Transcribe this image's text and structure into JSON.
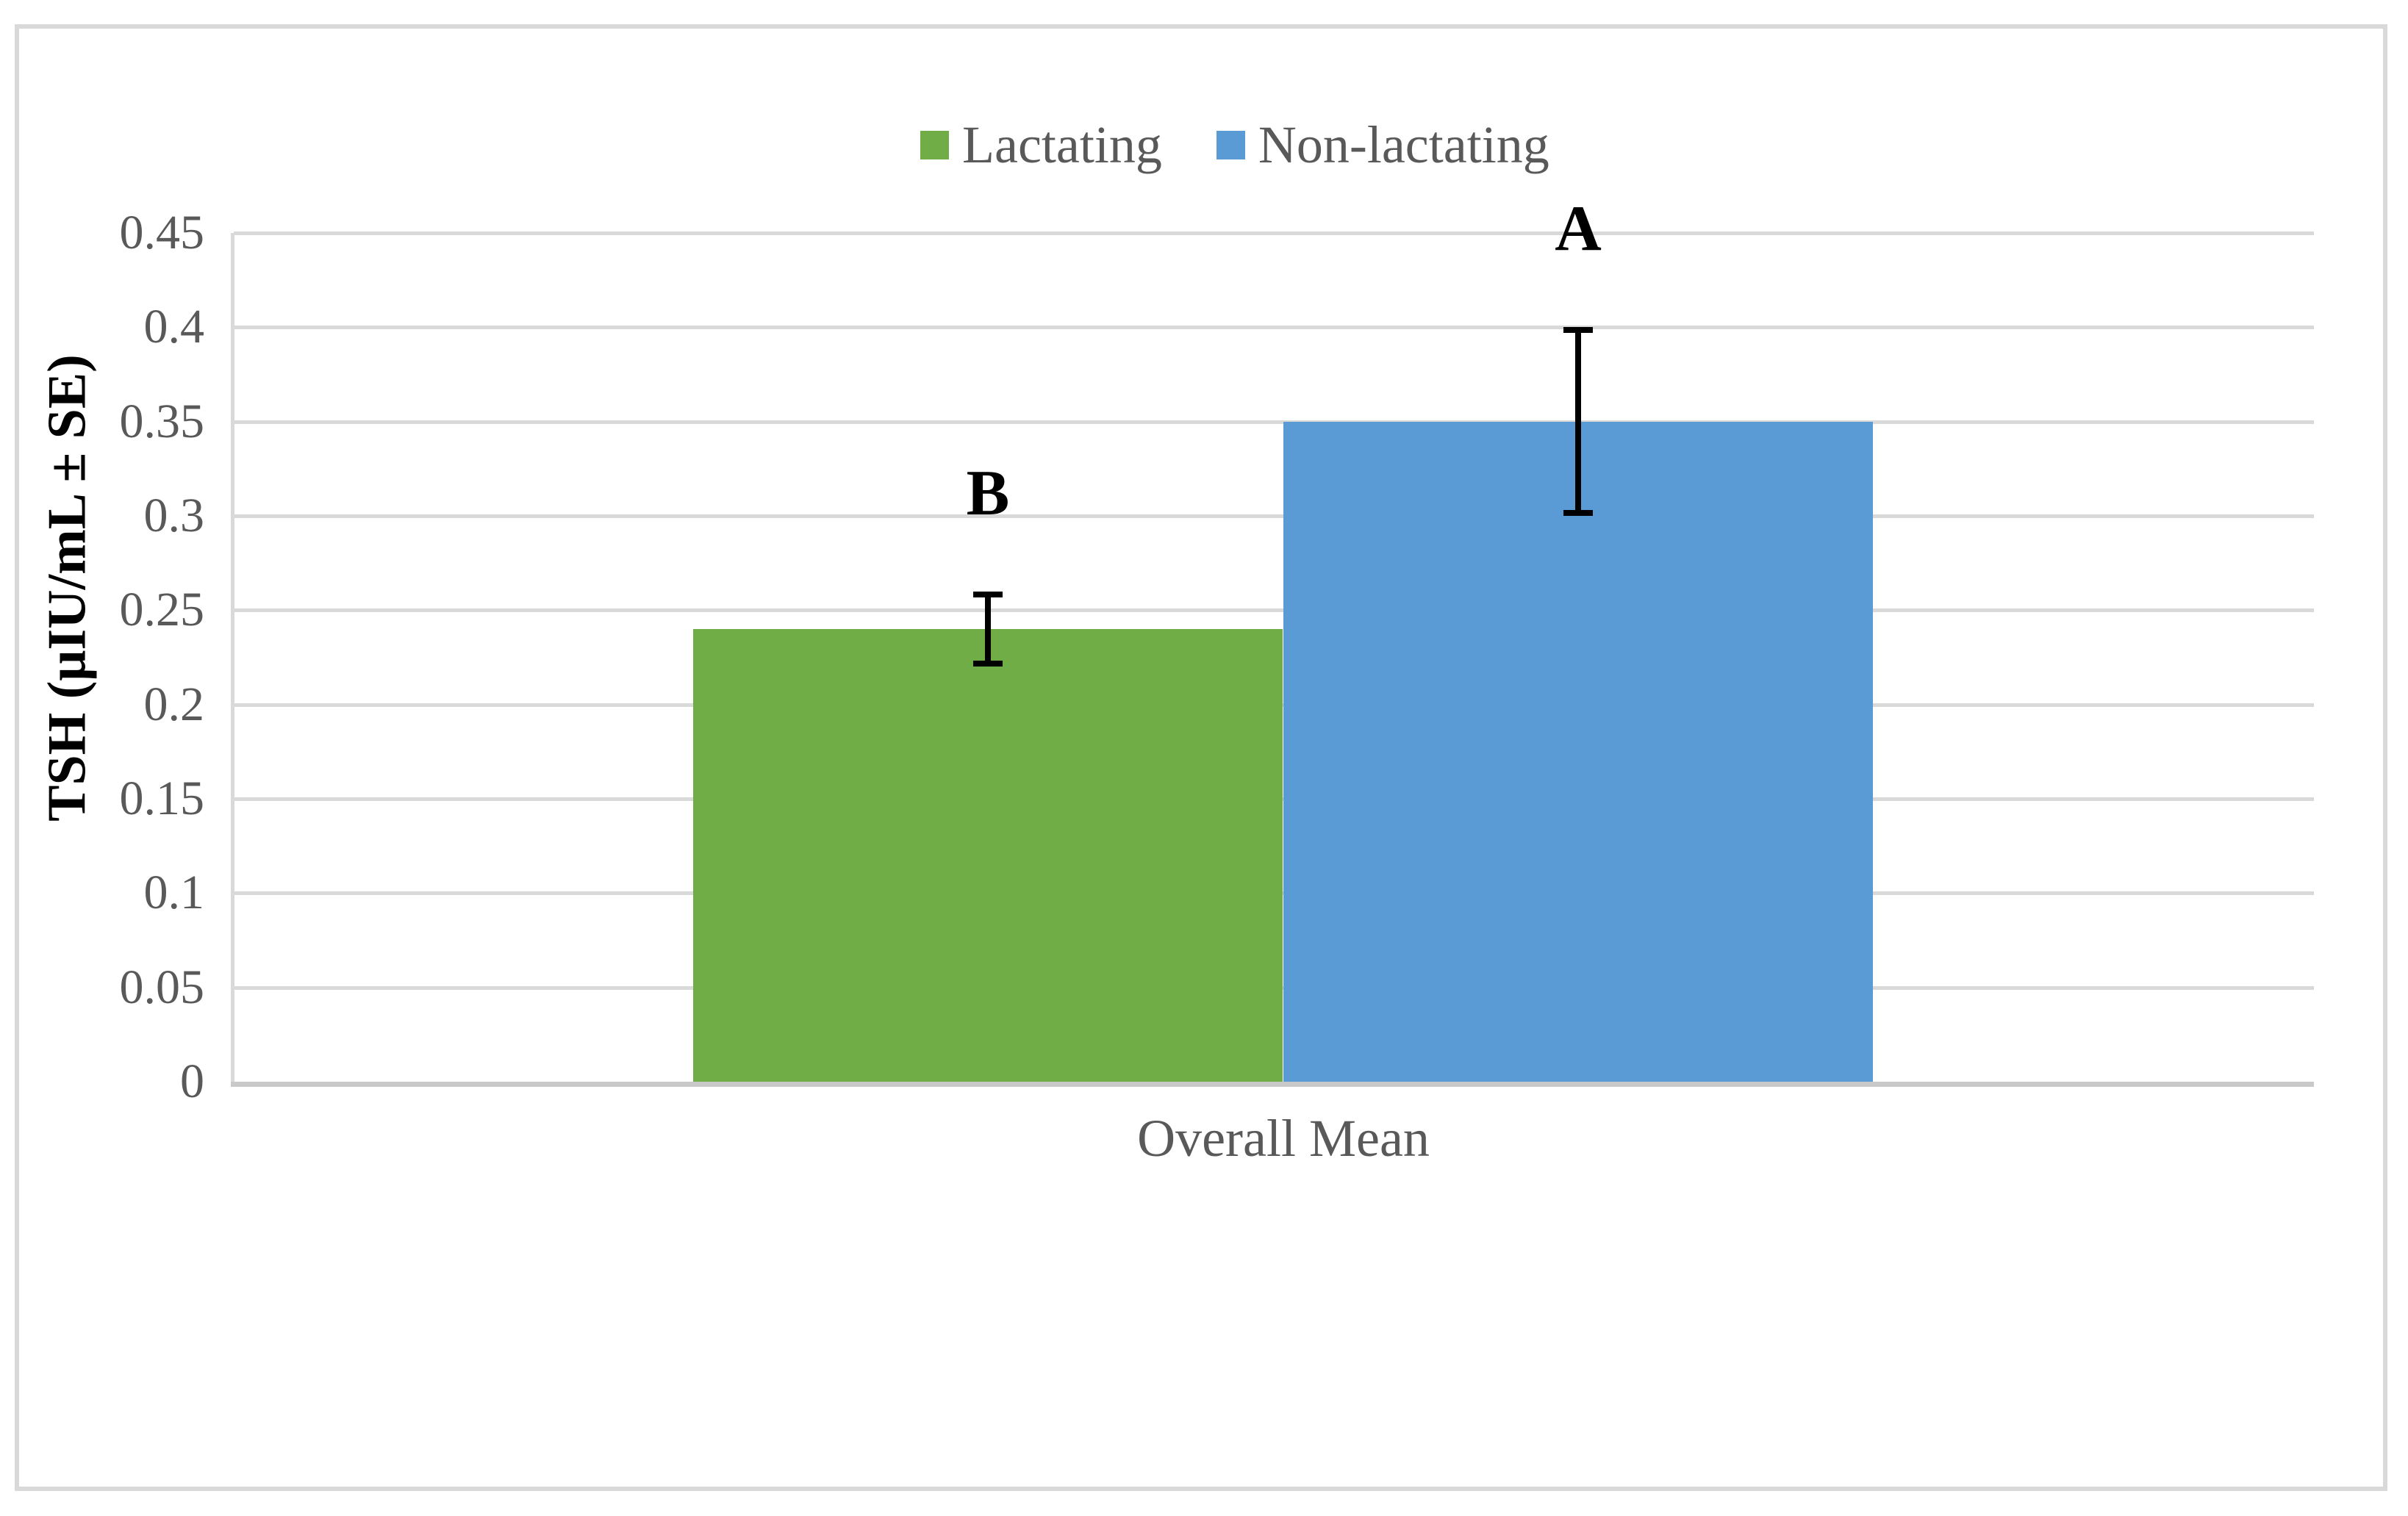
{
  "chart_data": {
    "type": "bar",
    "title": "",
    "xlabel": "",
    "ylabel": "TSH (μIU/mL ± SE)",
    "categories": [
      "Overall Mean"
    ],
    "series": [
      {
        "name": "Lactating",
        "color": "#70ad47",
        "values": [
          0.24
        ],
        "error_se": [
          0.02
        ],
        "sig_labels": [
          "B"
        ]
      },
      {
        "name": "Non-lactating",
        "color": "#5b9bd5",
        "values": [
          0.35
        ],
        "error_se": [
          0.05
        ],
        "sig_labels": [
          "A"
        ]
      }
    ],
    "ylim": [
      0,
      0.45
    ],
    "yticks": [
      {
        "value": 0.45,
        "label": "0.45"
      },
      {
        "value": 0.4,
        "label": "0.4"
      },
      {
        "value": 0.35,
        "label": "0.35"
      },
      {
        "value": 0.3,
        "label": "0.3"
      },
      {
        "value": 0.25,
        "label": "0.25"
      },
      {
        "value": 0.2,
        "label": "0.2"
      },
      {
        "value": 0.15,
        "label": "0.15"
      },
      {
        "value": 0.1,
        "label": "0.1"
      },
      {
        "value": 0.05,
        "label": "0.05"
      },
      {
        "value": 0,
        "label": "0"
      }
    ],
    "grid": true,
    "legend_position": "top",
    "error_bars": true
  },
  "colors": {
    "lactating": "#70ad47",
    "non_lactating": "#5b9bd5",
    "gridline": "#d9d9d9",
    "axis_line": "#c9c9c9",
    "tick_text": "#595959",
    "category_text": "#595959",
    "legend_text": "#595959",
    "axis_title_text": "#000000",
    "sig_letter_text": "#000000",
    "error_bar": "#000000",
    "figure_border": "#d9d9d9",
    "background": "#ffffff"
  }
}
